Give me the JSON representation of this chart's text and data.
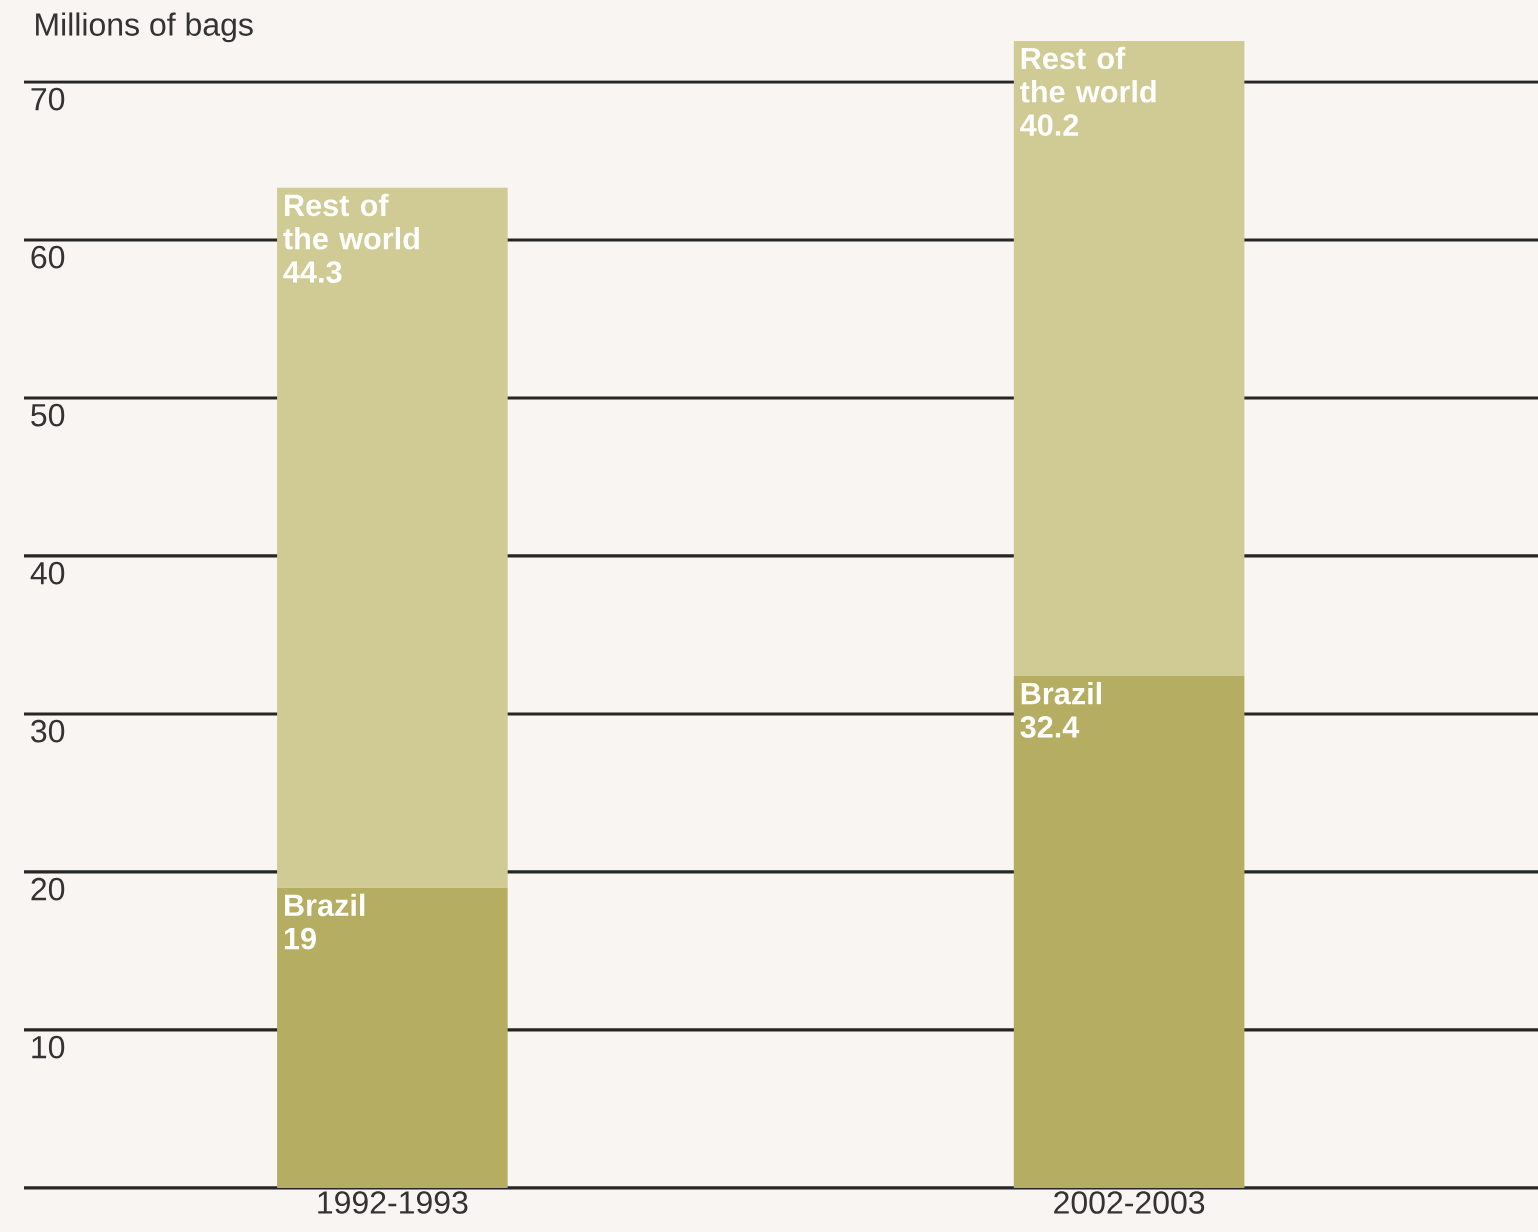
{
  "chart_data": {
    "type": "bar",
    "stacked": true,
    "ylabel": "Millions of bags",
    "categories": [
      "1992-1993",
      "2002-2003"
    ],
    "series": [
      {
        "name": "Brazil",
        "color": "#b5ae62",
        "values": [
          19,
          32.4
        ]
      },
      {
        "name": "Rest of the world",
        "color": "#d0cb94",
        "values": [
          44.3,
          40.2
        ]
      }
    ],
    "ylim": [
      0,
      75
    ],
    "yticks": [
      10,
      20,
      30,
      40,
      50,
      60,
      70
    ],
    "grid": "y",
    "data_labels": true
  }
}
